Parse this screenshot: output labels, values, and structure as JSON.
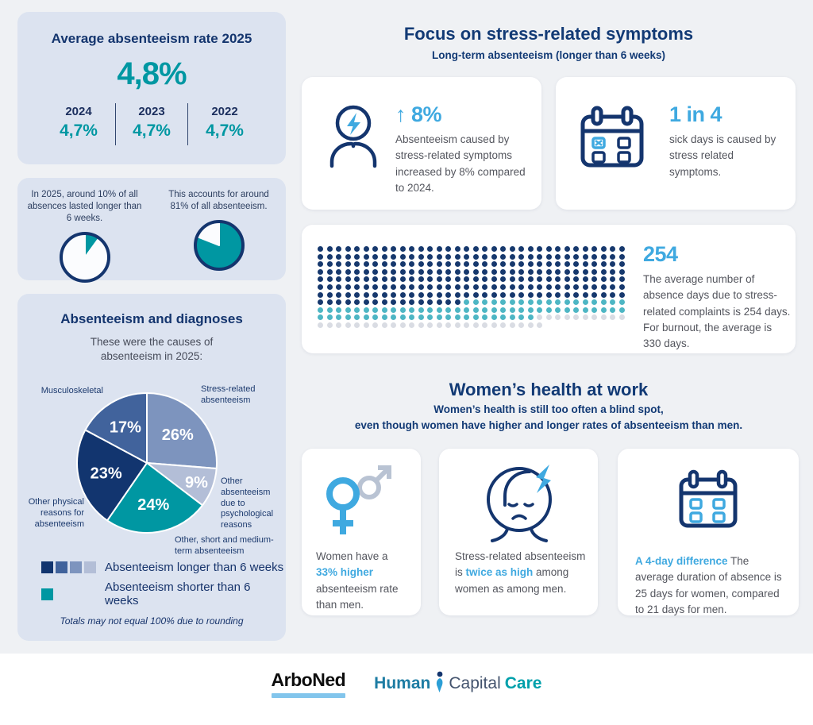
{
  "left": {
    "rate_panel": {
      "title": "Average absenteeism rate 2025",
      "current_value": "4,8%",
      "history": [
        {
          "year": "2024",
          "value": "4,7%"
        },
        {
          "year": "2023",
          "value": "4,7%"
        },
        {
          "year": "2022",
          "value": "4,7%"
        }
      ]
    },
    "diagnoses_panel": {
      "title": "Absenteeism and diagnoses",
      "subtitle": "These were the causes of absenteeism in 2025:",
      "legend": [
        {
          "colors": [
            "#12356f",
            "#41639c",
            "#7d94be",
            "#b3bed7"
          ],
          "label": "Absenteeism longer than 6 weeks"
        },
        {
          "colors": [
            "#0097a2"
          ],
          "label": "Absenteeism shorter than 6 weeks"
        }
      ],
      "note": "Totals may not equal 100% due to rounding"
    }
  },
  "stress": {
    "title": "Focus on stress-related symptoms",
    "subtitle": "Long-term absenteeism (longer than 6 weeks)",
    "increase_card": {
      "stat": "↑ 8%",
      "text": "Absenteeism caused by stress-related symptoms increased by 8% compared to 2024."
    },
    "ratio_card": {
      "stat": "1 in 4",
      "text": "sick days is caused by stress related symptoms."
    },
    "days_card": {
      "stat": "254",
      "text": "The average number of absence days due to stress-related complaints is 254 days. For burnout, the average is 330 days."
    }
  },
  "women": {
    "title": "Women’s health at work",
    "subtitle_line1": "Women’s health is still too often a blind spot,",
    "subtitle_line2": "even though women have higher and longer rates of absenteeism than men.",
    "rate_card": {
      "pre": "Women have a ",
      "highlight": "33% higher",
      "post": " absenteeism rate than men."
    },
    "stress_card": {
      "pre": "Stress-related absenteeism is ",
      "highlight": "twice as high",
      "post": " among women as among men."
    },
    "duration_card": {
      "pre": "",
      "highlight": "A 4-day difference",
      "post": " The average duration of absence is 25 days for women, compared to 21 days for men."
    }
  },
  "footer": {
    "arboned": "ArboNed",
    "hcc_human": "Human",
    "hcc_capital": "Capital",
    "hcc_care": "Care"
  },
  "chart_data": [
    {
      "id": "share-absences-longer-6-weeks",
      "type": "pie",
      "caption": "In 2025, around 10% of all absences lasted longer than 6 weeks.",
      "values": [
        {
          "label": "Absences lasting longer than 6 weeks",
          "value": 10,
          "color": "#0097a2"
        },
        {
          "label": "Other absences",
          "value": 90,
          "color": "#ffffff"
        }
      ],
      "ring_color": "#14356e"
    },
    {
      "id": "share-of-all-absenteeism",
      "type": "pie",
      "caption": "This accounts for around 81% of all absenteeism.",
      "values": [
        {
          "label": "Share of all absenteeism",
          "value": 81,
          "color": "#0097a2"
        },
        {
          "label": "Remainder",
          "value": 19,
          "color": "#ffffff"
        }
      ],
      "ring_color": "#14356e"
    },
    {
      "id": "causes-of-absenteeism-2025",
      "type": "pie",
      "title": "Causes of absenteeism in 2025",
      "slices": [
        {
          "label": "Stress-related absenteeism",
          "value": 26,
          "color": "#7d94be",
          "duration": "longer than 6 weeks"
        },
        {
          "label": "Other absenteeism due to psychological reasons",
          "value": 9,
          "color": "#b3bed7",
          "duration": "longer than 6 weeks"
        },
        {
          "label": "Other, short and medium-term absenteeism",
          "value": 24,
          "color": "#0097a2",
          "duration": "shorter than 6 weeks"
        },
        {
          "label": "Other physical reasons for absenteeism",
          "value": 23,
          "color": "#12356f",
          "duration": "longer than 6 weeks"
        },
        {
          "label": "Musculoskeletal",
          "value": 17,
          "color": "#41639c",
          "duration": "longer than 6 weeks"
        }
      ],
      "note": "Totals may not equal 100% due to rounding"
    },
    {
      "id": "absence-days-pictogram",
      "type": "pictogram",
      "columns": 34,
      "total": 365,
      "unit": "days",
      "segments": [
        {
          "label": "Average absence days due to stress-related complaints",
          "count": 254,
          "color": "#16386d"
        },
        {
          "label": "Additional days up to the burnout average of 330 days",
          "count": 76,
          "color": "#4db6c4"
        },
        {
          "label": "Remaining days of the year",
          "count": 35,
          "color": "#d9dce3"
        }
      ]
    }
  ]
}
